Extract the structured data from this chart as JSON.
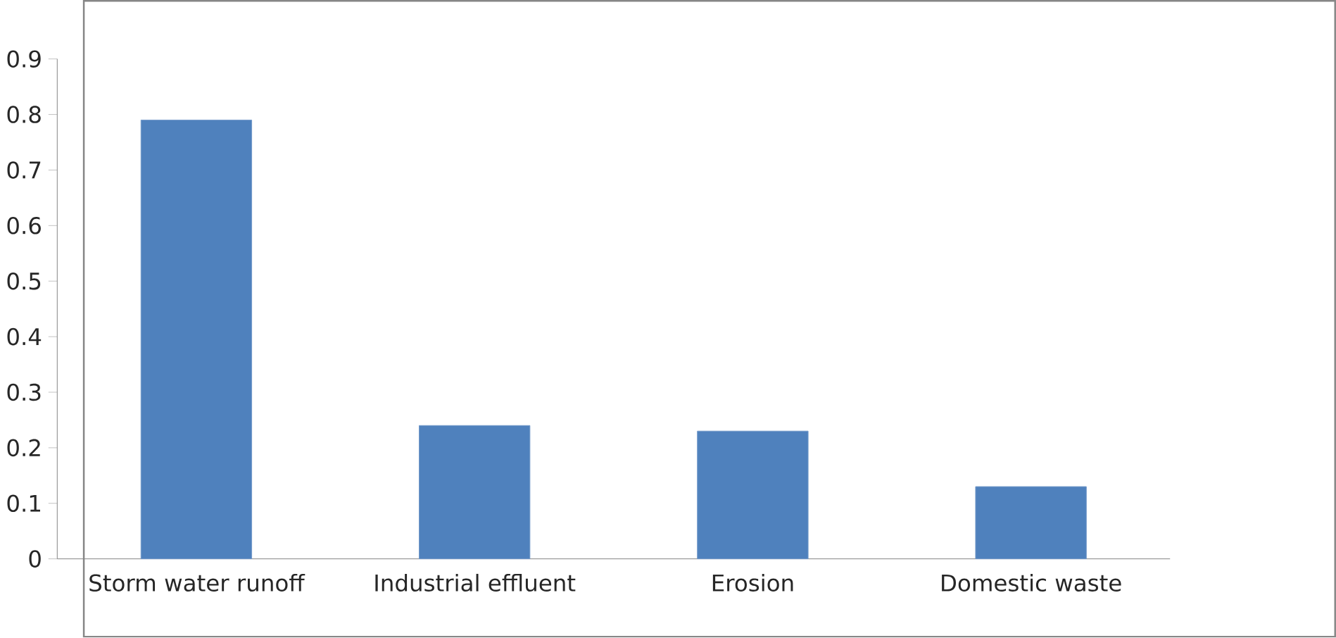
{
  "chart_data": {
    "type": "bar",
    "categories": [
      "Storm water runoff",
      "Industrial effluent",
      "Erosion",
      "Domestic waste"
    ],
    "values": [
      0.79,
      0.24,
      0.23,
      0.13
    ],
    "color": "#4f81bd",
    "ylim": [
      0,
      0.9
    ],
    "yticks": [
      0,
      0.1,
      0.2,
      0.3,
      0.4,
      0.5,
      0.6,
      0.7,
      0.8,
      0.9
    ],
    "grid": false
  }
}
